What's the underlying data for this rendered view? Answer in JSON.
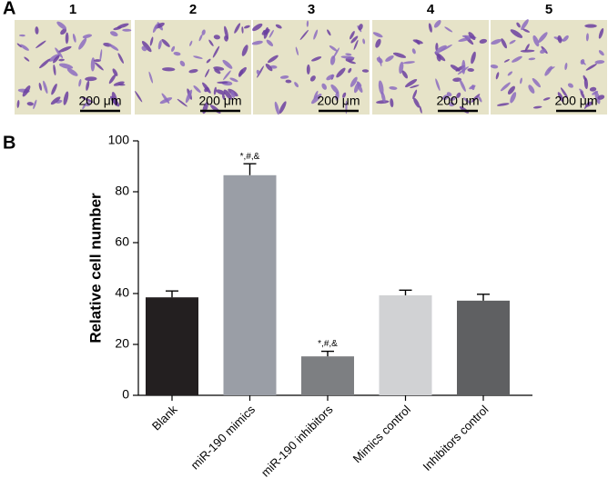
{
  "panel_a": {
    "label": "A",
    "images": [
      {
        "label": "1",
        "scale_bar": "200 μm"
      },
      {
        "label": "2",
        "scale_bar": "200 μm"
      },
      {
        "label": "3",
        "scale_bar": "200 μm"
      },
      {
        "label": "4",
        "scale_bar": "200 μm"
      },
      {
        "label": "5",
        "scale_bar": "200 μm"
      }
    ]
  },
  "chart_data": {
    "type": "bar",
    "panel_label": "B",
    "y_label": "Relative cell number",
    "categories": [
      "Blank",
      "miR-190 mimics",
      "miR-190 inhibitors",
      "Mimics control",
      "Inhibitors control"
    ],
    "values": [
      38.5,
      86.5,
      15.3,
      39.3,
      37.2
    ],
    "errors": [
      2.5,
      4.5,
      2.0,
      2.0,
      2.5
    ],
    "colors": [
      "#231f20",
      "#9a9ea6",
      "#7d7f82",
      "#d1d2d4",
      "#5f6062"
    ],
    "annotations": [
      null,
      "*,#,&",
      "*,#,&",
      null,
      null
    ],
    "ylim": [
      0,
      100
    ],
    "yticks": [
      0,
      20,
      40,
      60,
      80,
      100
    ]
  }
}
